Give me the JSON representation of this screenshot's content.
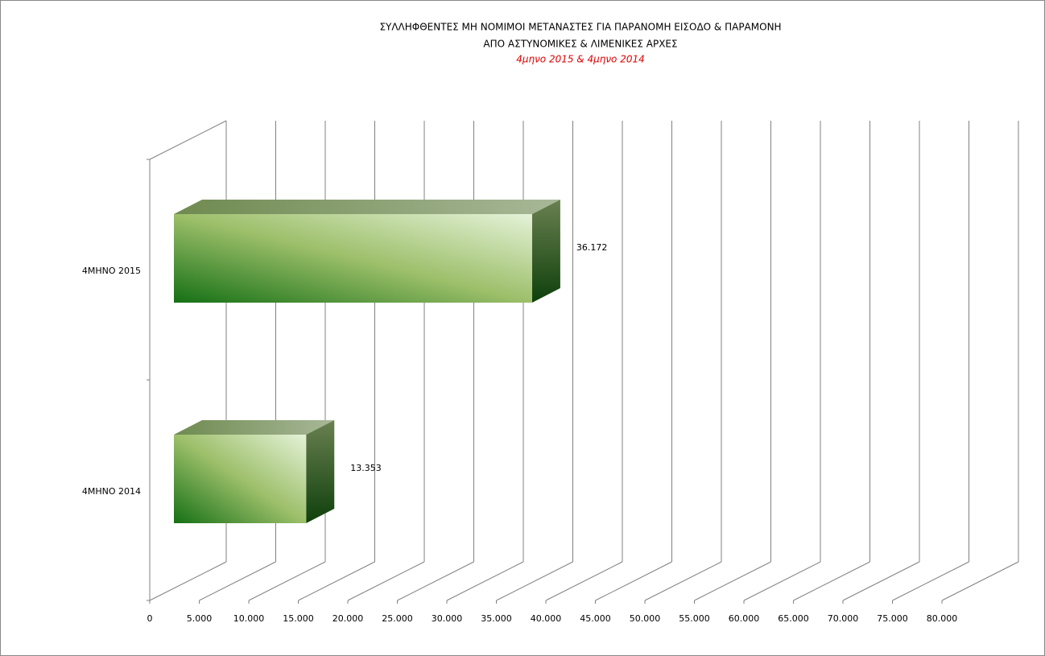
{
  "chart_data": {
    "type": "bar3d",
    "title": "ΣΥΛΛΗΦΘΕΝΤΕΣ  ΜΗ ΝΟΜΙΜΟΙ ΜΕΤΑΝΑΣΤΕΣ ΓΙΑ ΠΑΡΑΝΟΜΗ ΕΙΣΟΔΟ & ΠΑΡΑΜΟΝΗ",
    "title_line2": "ΑΠΟ ΑΣΤΥΝΟΜΙΚΕΣ & ΛΙΜΕΝΙΚΕΣ ΑΡΧΕΣ",
    "subtitle": "4μηνο 2015  &  4μηνο 2014",
    "categories": [
      "4ΜΗΝΟ 2015",
      "4ΜΗΝΟ 2014"
    ],
    "values": [
      36172,
      13353
    ],
    "value_labels": [
      "36.172",
      "13.353"
    ],
    "color": "#7aaa50",
    "xlim": [
      0,
      80000
    ],
    "xticks": [
      0,
      {
        "value": 5000,
        "label": "5.000"
      },
      {
        "value": 10000,
        "label": "10.000"
      },
      {
        "value": 15000,
        "label": "15.000"
      },
      {
        "value": 20000,
        "label": "20.000"
      },
      {
        "value": 25000,
        "label": "25.000"
      },
      {
        "value": 30000,
        "label": "30.000"
      },
      {
        "value": 35000,
        "label": "35.000"
      },
      {
        "value": 40000,
        "label": "40.000"
      },
      {
        "value": 45000,
        "label": "45.000"
      },
      {
        "value": 50000,
        "label": "50.000"
      },
      {
        "value": 55000,
        "label": "55.000"
      },
      {
        "value": 60000,
        "label": "60.000"
      },
      {
        "value": 65000,
        "label": "65.000"
      },
      {
        "value": 70000,
        "label": "70.000"
      },
      {
        "value": 75000,
        "label": "75.000"
      },
      {
        "value": 80000,
        "label": "80.000"
      }
    ],
    "grid": true
  }
}
